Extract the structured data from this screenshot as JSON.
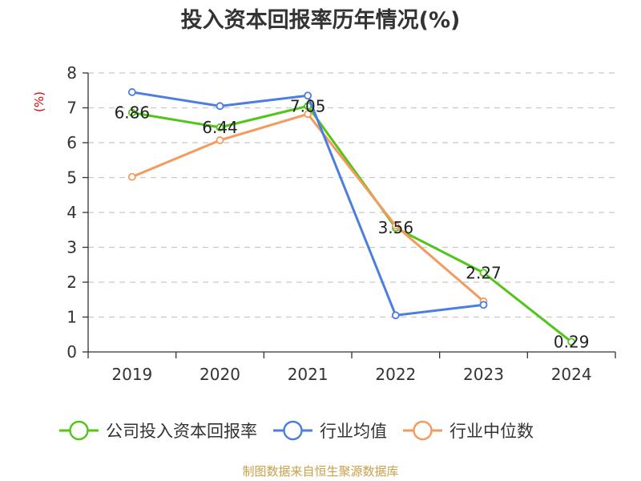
{
  "chart_data": {
    "type": "line",
    "title": "投入资本回报率历年情况(%)",
    "ylabel": "(%)",
    "xlabel": "",
    "ylim": [
      0,
      8
    ],
    "yticks": [
      0,
      1,
      2,
      3,
      4,
      5,
      6,
      7,
      8
    ],
    "grid": true,
    "legend_position": "bottom",
    "categories": [
      "2019",
      "2020",
      "2021",
      "2022",
      "2023",
      "2024"
    ],
    "series": [
      {
        "name": "公司投入资本回报率",
        "color": "#52c41a",
        "values": [
          6.86,
          6.44,
          7.05,
          3.56,
          2.27,
          0.29
        ],
        "labels": [
          "6.86",
          "6.44",
          "7.05",
          "3.56",
          "2.27",
          "0.29"
        ]
      },
      {
        "name": "行业均值",
        "color": "#4a7ee0",
        "values": [
          7.45,
          7.05,
          7.35,
          1.05,
          1.35,
          null
        ]
      },
      {
        "name": "行业中位数",
        "color": "#f59a5e",
        "values": [
          5.02,
          6.07,
          6.82,
          3.62,
          1.45,
          null
        ]
      }
    ],
    "source": "制图数据来自恒生聚源数据库"
  }
}
